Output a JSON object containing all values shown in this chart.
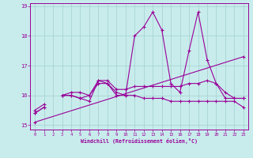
{
  "xlabel": "Windchill (Refroidissement éolien,°C)",
  "background_color": "#c8ecec",
  "grid_color": "#aad4d4",
  "line_color": "#990099",
  "x_hours": [
    0,
    1,
    2,
    3,
    4,
    5,
    6,
    7,
    8,
    9,
    10,
    11,
    12,
    13,
    14,
    15,
    16,
    17,
    18,
    19,
    20,
    21,
    22,
    23
  ],
  "series1": [
    15.4,
    15.6,
    null,
    16.0,
    16.0,
    15.9,
    15.8,
    16.5,
    16.4,
    16.1,
    16.0,
    18.0,
    18.3,
    18.8,
    18.2,
    16.4,
    16.1,
    17.5,
    18.8,
    17.2,
    16.4,
    16.1,
    15.9,
    15.9
  ],
  "series2": [
    15.5,
    15.7,
    null,
    16.0,
    16.1,
    16.1,
    16.0,
    16.5,
    16.5,
    16.2,
    16.2,
    16.3,
    16.3,
    16.3,
    16.3,
    16.3,
    16.3,
    16.4,
    16.4,
    16.5,
    16.4,
    15.9,
    15.9,
    15.9
  ],
  "series3": [
    15.4,
    15.6,
    null,
    16.0,
    16.0,
    15.9,
    16.0,
    16.4,
    16.4,
    16.0,
    16.0,
    16.0,
    15.9,
    15.9,
    15.9,
    15.8,
    15.8,
    15.8,
    15.8,
    15.8,
    15.8,
    15.8,
    15.8,
    15.6
  ],
  "series4_x": [
    0,
    23
  ],
  "series4_y": [
    15.1,
    17.3
  ],
  "ylim": [
    14.85,
    19.1
  ],
  "yticks": [
    15,
    16,
    17,
    18,
    19
  ],
  "xticks": [
    0,
    1,
    2,
    3,
    4,
    5,
    6,
    7,
    8,
    9,
    10,
    11,
    12,
    13,
    14,
    15,
    16,
    17,
    18,
    19,
    20,
    21,
    22,
    23
  ]
}
